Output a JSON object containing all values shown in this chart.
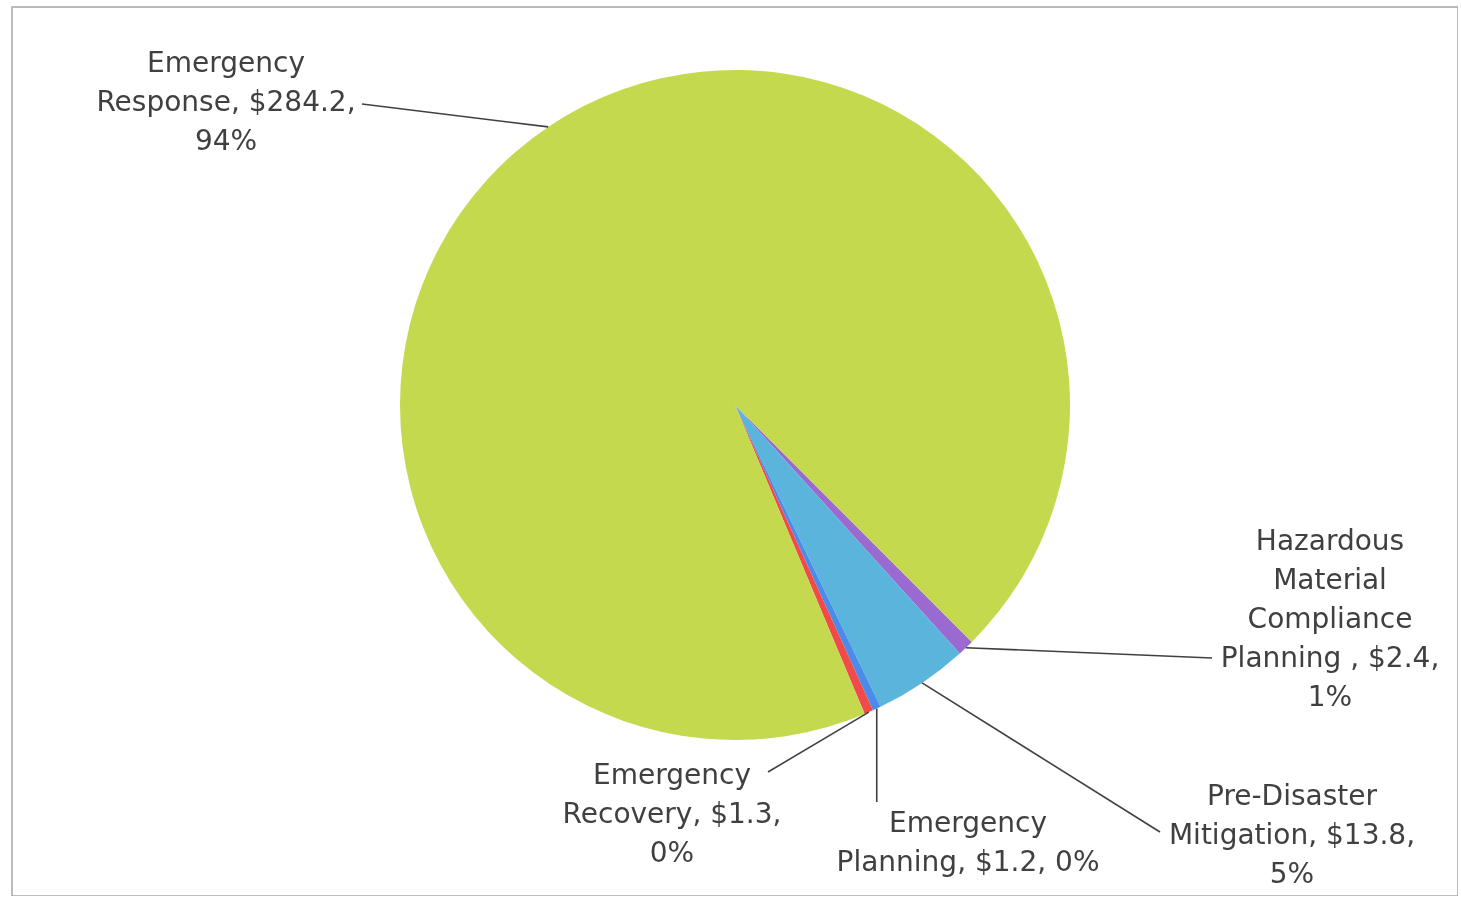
{
  "chart_data": {
    "type": "pie",
    "categories": [
      "Hazardous Material Compliance Planning ",
      "Pre-Disaster Mitigation",
      "Emergency Planning",
      "Emergency Recovery",
      "Emergency Response"
    ],
    "values": [
      2.4,
      13.8,
      1.2,
      1.3,
      284.2
    ],
    "colors": [
      "#9b6ad0",
      "#5ab4dc",
      "#4a8cea",
      "#f04a4a",
      "#c5d94f"
    ],
    "value_labels": [
      "$2.4, 1%",
      "$13.8, 5%",
      "$1.2, 0%",
      "$1.3, 0%",
      "$284.2, 94%"
    ]
  }
}
